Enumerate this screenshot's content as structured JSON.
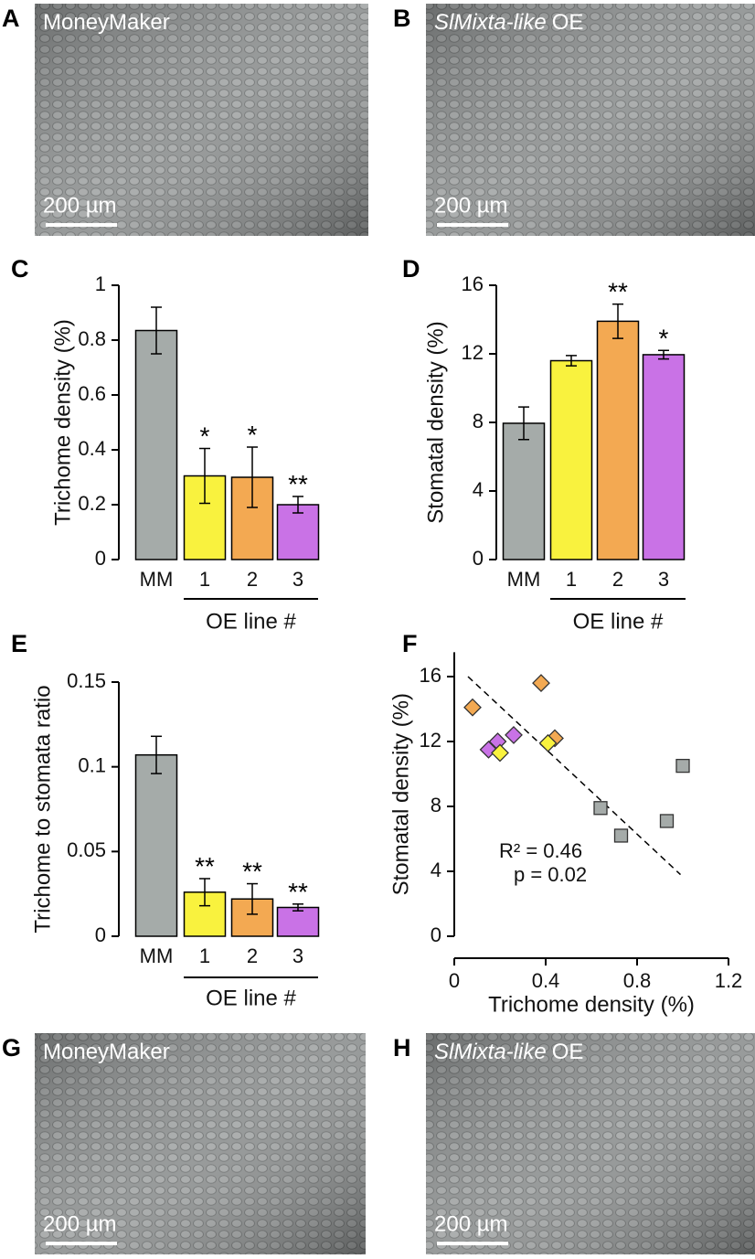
{
  "panels": [
    {
      "letter": "A",
      "label": "MoneyMaker",
      "scale_bar": "200 µm"
    },
    {
      "letter": "B",
      "label_italic": "SlMixta-like",
      "label": "OE",
      "scale_bar": "200 µm"
    },
    {
      "letter": "G",
      "label": "MoneyMaker",
      "scale_bar": "200 µm"
    },
    {
      "letter": "H",
      "label_italic": "SlMixta-like",
      "label": "OE",
      "scale_bar": "200 µm"
    }
  ],
  "chart_data": [
    {
      "type": "bar",
      "panel_letter": "C",
      "ylabel": "Trichome density (%)",
      "categories": [
        "MM",
        "1",
        "2",
        "3"
      ],
      "values": [
        0.835,
        0.305,
        0.3,
        0.2
      ],
      "errors": [
        0.085,
        0.1,
        0.11,
        0.03
      ],
      "colors": [
        "#a5aba9",
        "#f9f23e",
        "#f3a952",
        "#c972e6"
      ],
      "annotations": [
        null,
        "*",
        "*",
        "**"
      ],
      "group_label": "OE line #",
      "ylim": [
        0,
        1
      ],
      "yticks": [
        0,
        0.2,
        0.4,
        0.6,
        0.8,
        1
      ]
    },
    {
      "type": "bar",
      "panel_letter": "D",
      "ylabel": "Stomatal density (%)",
      "categories": [
        "MM",
        "1",
        "2",
        "3"
      ],
      "values": [
        7.95,
        11.6,
        13.9,
        11.95
      ],
      "errors": [
        0.95,
        0.3,
        1.0,
        0.25
      ],
      "colors": [
        "#a5aba9",
        "#f9f23e",
        "#f3a952",
        "#c972e6"
      ],
      "annotations": [
        null,
        null,
        "**",
        "*"
      ],
      "group_label": "OE line #",
      "ylim": [
        0,
        16
      ],
      "yticks": [
        0,
        4,
        8,
        12,
        16
      ]
    },
    {
      "type": "bar",
      "panel_letter": "E",
      "ylabel": "Trichome to stomata ratio",
      "categories": [
        "MM",
        "1",
        "2",
        "3"
      ],
      "values": [
        0.107,
        0.026,
        0.022,
        0.017
      ],
      "errors": [
        0.011,
        0.008,
        0.009,
        0.002
      ],
      "colors": [
        "#a5aba9",
        "#f9f23e",
        "#f3a952",
        "#c972e6"
      ],
      "annotations": [
        null,
        "**",
        "**",
        "**"
      ],
      "group_label": "OE line #",
      "ylim": [
        0,
        0.15
      ],
      "yticks": [
        0,
        0.05,
        0.1,
        0.15
      ]
    },
    {
      "type": "scatter",
      "panel_letter": "F",
      "xlabel": "Trichome density (%)",
      "ylabel": "Stomatal density (%)",
      "xlim": [
        0,
        1.2
      ],
      "xticks": [
        0,
        0.4,
        0.8,
        1.2
      ],
      "ylim": [
        0,
        17.5
      ],
      "yticks": [
        0,
        4,
        8,
        12,
        16
      ],
      "series": [
        {
          "color": "#a5aba9",
          "marker": "square",
          "x": [
            0.64,
            0.73,
            0.93,
            1.0
          ],
          "values": [
            7.9,
            6.2,
            7.1,
            10.5
          ]
        },
        {
          "color": "#f3a952",
          "marker": "diamond",
          "x": [
            0.08,
            0.38,
            0.44
          ],
          "values": [
            14.1,
            15.6,
            12.2
          ]
        },
        {
          "color": "#c972e6",
          "marker": "diamond",
          "x": [
            0.15,
            0.19,
            0.26
          ],
          "values": [
            11.5,
            12.0,
            12.4
          ]
        },
        {
          "color": "#f9f23e",
          "marker": "diamond",
          "x": [
            0.2,
            0.41
          ],
          "values": [
            11.3,
            11.9
          ]
        }
      ],
      "fit_line": {
        "x": [
          0.06,
          0.99
        ],
        "values": [
          16.0,
          3.8
        ],
        "style": "dashed"
      },
      "annotations": [
        "R² = 0.46",
        "p = 0.02"
      ]
    }
  ]
}
